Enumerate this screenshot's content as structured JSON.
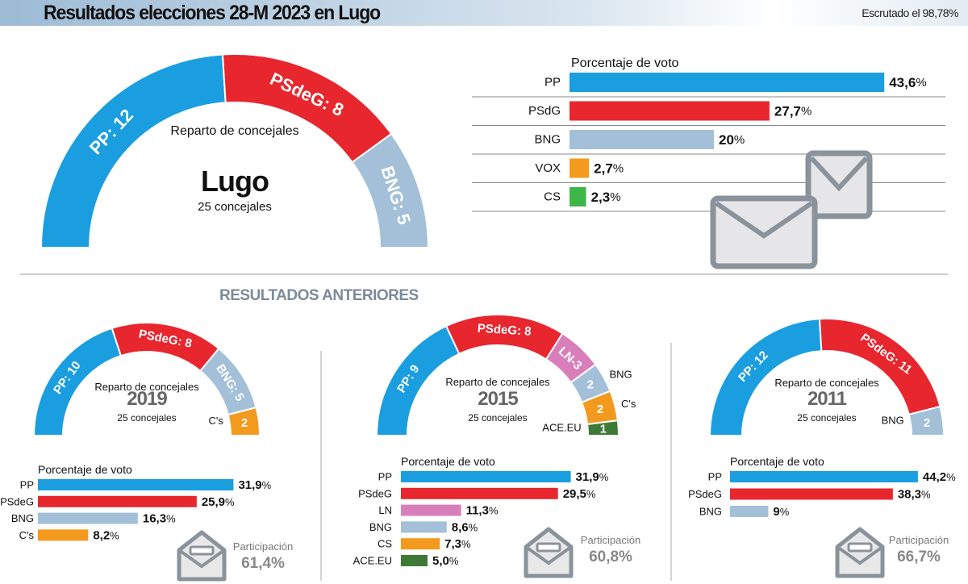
{
  "header": {
    "title": "Resultados elecciones 28-M  2023 en Lugo",
    "scrutiny": "Escrutado el 98,78%"
  },
  "section_title": "RESULTADOS ANTERIORES",
  "colors": {
    "PP": "#1a9ee0",
    "PSdeG": "#e8262e",
    "BNG": "#a3c0d8",
    "VOX": "#f39a1e",
    "CS": "#3fb64a",
    "Cs": "#f39a1e",
    "LN": "#d87fbb",
    "ACE.EU": "#3e7a35"
  },
  "chart_data": [
    {
      "type": "pie",
      "subtype": "hemicycle",
      "title": "Lugo",
      "subtitle": "25 concejales",
      "caption": "Reparto de concejales",
      "segments": [
        {
          "party": "PP",
          "seats": 12,
          "label": "PP: 12"
        },
        {
          "party": "PSdeG",
          "seats": 8,
          "label": "PSdeG: 8"
        },
        {
          "party": "BNG",
          "seats": 5,
          "label": "BNG: 5"
        }
      ]
    },
    {
      "type": "bar",
      "orientation": "horizontal",
      "title": "Porcentaje de voto",
      "categories": [
        "PP",
        "PSdG",
        "BNG",
        "VOX",
        "CS"
      ],
      "values": [
        43.6,
        27.7,
        20,
        2.7,
        2.3
      ],
      "labels": [
        "43,6",
        "27,7",
        "20",
        "2,7",
        "2,3"
      ],
      "unit": "%",
      "colors": [
        "PP",
        "PSdeG",
        "BNG",
        "VOX",
        "CS"
      ]
    },
    {
      "type": "pie",
      "subtype": "hemicycle",
      "title": "2019",
      "subtitle": "25 concejales",
      "caption": "Reparto de concejales",
      "segments": [
        {
          "party": "PP",
          "seats": 10,
          "label": "PP: 10"
        },
        {
          "party": "PSdeG",
          "seats": 8,
          "label": "PSdeG: 8"
        },
        {
          "party": "BNG",
          "seats": 5,
          "label": "BNG: 5"
        },
        {
          "party": "Cs",
          "seats": 2,
          "label": "2",
          "outside": "C's"
        }
      ]
    },
    {
      "type": "bar",
      "orientation": "horizontal",
      "title": "Porcentaje de voto",
      "categories": [
        "PP",
        "PSdeG",
        "BNG",
        "C's"
      ],
      "values": [
        31.9,
        25.9,
        16.3,
        8.2
      ],
      "labels": [
        "31,9",
        "25,9",
        "16,3",
        "8,2"
      ],
      "unit": "%",
      "colors": [
        "PP",
        "PSdeG",
        "BNG",
        "Cs"
      ],
      "participation_label": "Participación",
      "participation": "61,4%"
    },
    {
      "type": "pie",
      "subtype": "hemicycle",
      "title": "2015",
      "subtitle": "25 concejales",
      "caption": "Reparto de concejales",
      "segments": [
        {
          "party": "PP",
          "seats": 9,
          "label": "PP: 9"
        },
        {
          "party": "PSdeG",
          "seats": 8,
          "label": "PSdeG: 8"
        },
        {
          "party": "LN",
          "seats": 3,
          "label": "LN-3"
        },
        {
          "party": "BNG",
          "seats": 2,
          "label": "2",
          "outside": "BNG"
        },
        {
          "party": "Cs",
          "seats": 2,
          "label": "2",
          "outside": "C's"
        },
        {
          "party": "ACE.EU",
          "seats": 1,
          "label": "1",
          "outside": "ACE.EU"
        }
      ]
    },
    {
      "type": "bar",
      "orientation": "horizontal",
      "title": "Porcentaje de voto",
      "categories": [
        "PP",
        "PSdeG",
        "LN",
        "BNG",
        "CS",
        "ACE.EU"
      ],
      "values": [
        31.9,
        29.5,
        11.3,
        8.6,
        7.3,
        5.0
      ],
      "labels": [
        "31,9",
        "29,5",
        "11,3",
        "8,6",
        "7,3",
        "5,0"
      ],
      "unit": "%",
      "colors": [
        "PP",
        "PSdeG",
        "LN",
        "BNG",
        "Cs",
        "ACE.EU"
      ],
      "participation_label": "Participación",
      "participation": "60,8%"
    },
    {
      "type": "pie",
      "subtype": "hemicycle",
      "title": "2011",
      "subtitle": "25 concejales",
      "caption": "Reparto de concejales",
      "segments": [
        {
          "party": "PP",
          "seats": 12,
          "label": "PP: 12"
        },
        {
          "party": "PSdeG",
          "seats": 11,
          "label": "PSdeG: 11"
        },
        {
          "party": "BNG",
          "seats": 2,
          "label": "2",
          "outside": "BNG"
        }
      ]
    },
    {
      "type": "bar",
      "orientation": "horizontal",
      "title": "Porcentaje de voto",
      "categories": [
        "PP",
        "PSdeG",
        "BNG"
      ],
      "values": [
        44.2,
        38.3,
        9
      ],
      "labels": [
        "44,2",
        "38,3",
        "9"
      ],
      "unit": "%",
      "colors": [
        "PP",
        "PSdeG",
        "BNG"
      ],
      "participation_label": "Participación",
      "participation": "66,7%"
    }
  ]
}
